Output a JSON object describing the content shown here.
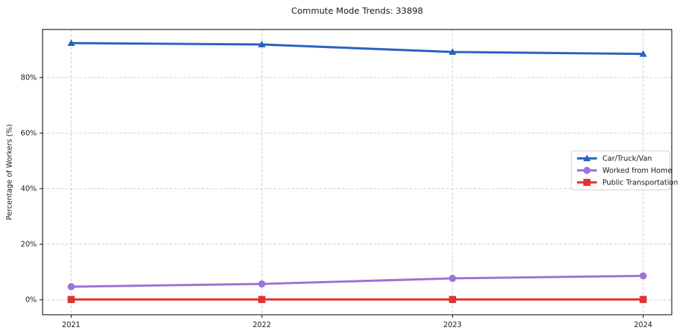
{
  "chart_data": {
    "type": "line",
    "title": "Commute Mode Trends: 33898",
    "xlabel": "",
    "ylabel": "Percentage of Workers (%)",
    "x": [
      2021,
      2022,
      2023,
      2024
    ],
    "x_tick_labels": [
      "2021",
      "2022",
      "2023",
      "2024"
    ],
    "y_ticks": [
      0,
      20,
      40,
      60,
      80
    ],
    "y_tick_labels": [
      "0%",
      "20%",
      "40%",
      "60%",
      "80%"
    ],
    "xlim": [
      2020.85,
      2024.15
    ],
    "ylim": [
      -5.4,
      97.3
    ],
    "grid": true,
    "grid_color": "#cccccc",
    "spine_color": "#1a1a1a",
    "legend_position": "center-right",
    "series": [
      {
        "name": "Car/Truck/Van",
        "color": "#2b61c2",
        "marker": "triangle",
        "values": [
          92.4,
          91.9,
          89.2,
          88.5
        ]
      },
      {
        "name": "Worked from Home",
        "color": "#9a74d6",
        "marker": "circle",
        "values": [
          4.7,
          5.7,
          7.7,
          8.6
        ]
      },
      {
        "name": "Public Transportation",
        "color": "#df3434",
        "marker": "square",
        "values": [
          0.1,
          0.1,
          0.1,
          0.1
        ]
      }
    ]
  }
}
